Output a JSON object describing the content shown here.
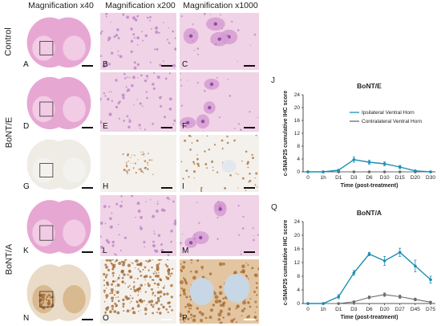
{
  "columns": [
    "Magnification x40",
    "Magnification x200",
    "Magnification x1000"
  ],
  "rows": [
    "Control",
    "BoNT/E",
    "BoNT/A"
  ],
  "panels": [
    {
      "label": "A",
      "stain": "he",
      "kind": "cord"
    },
    {
      "label": "B",
      "stain": "he",
      "kind": "tissue"
    },
    {
      "label": "C",
      "stain": "he",
      "kind": "cells"
    },
    {
      "label": "D",
      "stain": "he",
      "kind": "cord"
    },
    {
      "label": "E",
      "stain": "he",
      "kind": "tissue"
    },
    {
      "label": "F",
      "stain": "he",
      "kind": "cells"
    },
    {
      "label": "G",
      "stain": "ihc-light",
      "kind": "cord"
    },
    {
      "label": "H",
      "stain": "ihc-light",
      "kind": "tissue"
    },
    {
      "label": "I",
      "stain": "ihc-light",
      "kind": "cells"
    },
    {
      "label": "K",
      "stain": "he",
      "kind": "cord"
    },
    {
      "label": "L",
      "stain": "he",
      "kind": "tissue"
    },
    {
      "label": "M",
      "stain": "he",
      "kind": "cells"
    },
    {
      "label": "N",
      "stain": "ihc-dark",
      "kind": "cord"
    },
    {
      "label": "O",
      "stain": "ihc-dark",
      "kind": "tissue"
    },
    {
      "label": "P",
      "stain": "ihc-dark",
      "kind": "cells"
    }
  ],
  "colors": {
    "ipsi": "#1a8fb3",
    "contra": "#6b6b6b",
    "he_bg": "#f0d3e6",
    "he_cell": "#b97cc4",
    "ihc_bg": "#f4f1ec",
    "ihc_dot": "#a0622a"
  },
  "chart_data": [
    {
      "letter": "J",
      "type": "line",
      "title": "BoNT/E",
      "xlabel": "Time (post-treatment)",
      "ylabel": "c-SNAP25 cumulative IHC score",
      "categories": [
        "0",
        "1h",
        "D1",
        "D3",
        "D6",
        "D10",
        "D15",
        "D20",
        "D30"
      ],
      "ylim": [
        0,
        24
      ],
      "yticks": [
        0,
        4,
        8,
        12,
        16,
        20,
        24
      ],
      "legend": [
        "Ipsilateral Ventral Horn",
        "Contralateral Ventral Horn"
      ],
      "series": [
        {
          "name": "Ipsilateral Ventral Horn",
          "values": [
            0,
            0,
            0.5,
            3.8,
            3.0,
            2.5,
            1.5,
            0.3,
            0
          ],
          "err": [
            0,
            0,
            0.2,
            0.8,
            0.6,
            0.6,
            0.5,
            0.2,
            0
          ]
        },
        {
          "name": "Contralateral Ventral Horn",
          "values": [
            0,
            0,
            0,
            0,
            0,
            0,
            0,
            0,
            0
          ],
          "err": [
            0,
            0,
            0,
            0,
            0,
            0,
            0,
            0,
            0
          ]
        }
      ]
    },
    {
      "letter": "Q",
      "type": "line",
      "title": "BoNT/A",
      "xlabel": "Time (post-treatment)",
      "ylabel": "c-SNAP25 cumulative IHC score",
      "categories": [
        "0",
        "1h",
        "D1",
        "D3",
        "D6",
        "D20",
        "D27",
        "D45",
        "D75"
      ],
      "ylim": [
        0,
        24
      ],
      "yticks": [
        0,
        4,
        8,
        12,
        16,
        20,
        24
      ],
      "legend": [],
      "series": [
        {
          "name": "Ipsilateral Ventral Horn",
          "values": [
            0,
            0,
            2,
            9,
            14.5,
            12.5,
            15,
            11,
            7
          ],
          "err": [
            0,
            0,
            0.6,
            0.7,
            0.5,
            1.3,
            1.2,
            1.7,
            1.0
          ]
        },
        {
          "name": "Contralateral Ventral Horn",
          "values": [
            0,
            0,
            0,
            0.5,
            1.8,
            2.6,
            2.0,
            1.2,
            0.4
          ],
          "err": [
            0,
            0,
            0,
            0.2,
            0.4,
            0.5,
            0.5,
            0.4,
            0.2
          ]
        }
      ]
    }
  ]
}
